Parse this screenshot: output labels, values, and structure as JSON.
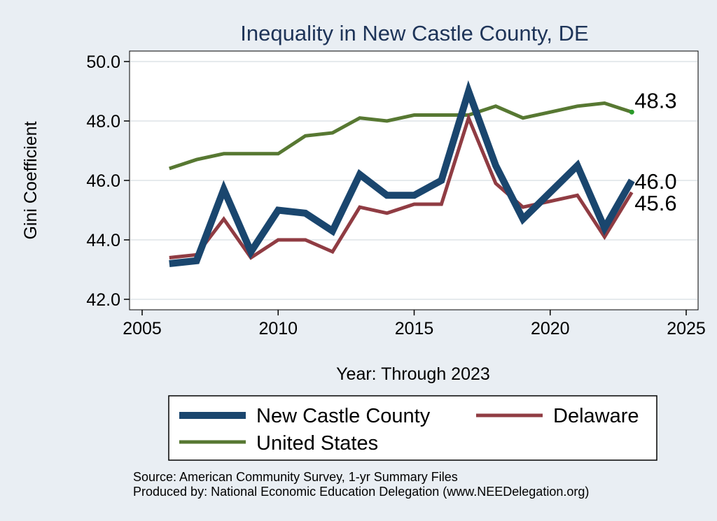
{
  "chart_data": {
    "type": "line",
    "title": "Inequality in New Castle County, DE",
    "xlabel": "Year: Through 2023",
    "ylabel": "Gini Coefficient",
    "xlim": [
      2005,
      2025
    ],
    "ylim": [
      42.0,
      50.0
    ],
    "x_ticks": [
      "2005",
      "2010",
      "2015",
      "2020",
      "2025"
    ],
    "x_tick_values": [
      2005,
      2010,
      2015,
      2020,
      2025
    ],
    "y_ticks": [
      "42.0",
      "44.0",
      "46.0",
      "48.0",
      "50.0"
    ],
    "y_tick_values": [
      42,
      44,
      46,
      48,
      50
    ],
    "grid": "horizontal",
    "legend_position": "bottom",
    "x": [
      2006,
      2007,
      2008,
      2009,
      2010,
      2011,
      2012,
      2013,
      2014,
      2015,
      2016,
      2017,
      2018,
      2019,
      2020,
      2021,
      2022,
      2023
    ],
    "series": [
      {
        "name": "New Castle County",
        "color": "#1a466e",
        "values": [
          43.2,
          43.3,
          45.7,
          43.6,
          45.0,
          44.9,
          44.3,
          46.2,
          45.5,
          45.5,
          46.0,
          49.0,
          46.5,
          44.7,
          45.6,
          46.5,
          44.4,
          46.0
        ],
        "end_label": "46.0"
      },
      {
        "name": "Delaware",
        "color": "#903c43",
        "values": [
          43.4,
          43.5,
          44.7,
          43.4,
          44.0,
          44.0,
          43.6,
          45.1,
          44.9,
          45.2,
          45.2,
          48.1,
          45.9,
          45.1,
          45.3,
          45.5,
          44.1,
          45.6
        ],
        "end_label": "45.6"
      },
      {
        "name": "United States",
        "color": "#577832",
        "values": [
          46.4,
          46.7,
          46.9,
          46.9,
          46.9,
          47.5,
          47.6,
          48.1,
          48.0,
          48.2,
          48.2,
          48.2,
          48.5,
          48.1,
          48.3,
          48.5,
          48.6,
          48.3
        ],
        "end_label": "48.3"
      }
    ],
    "notes": [
      "Source: American Community Survey, 1-yr Summary Files",
      "Produced by: National Economic Education Delegation (www.NEEDelegation.org)"
    ]
  }
}
